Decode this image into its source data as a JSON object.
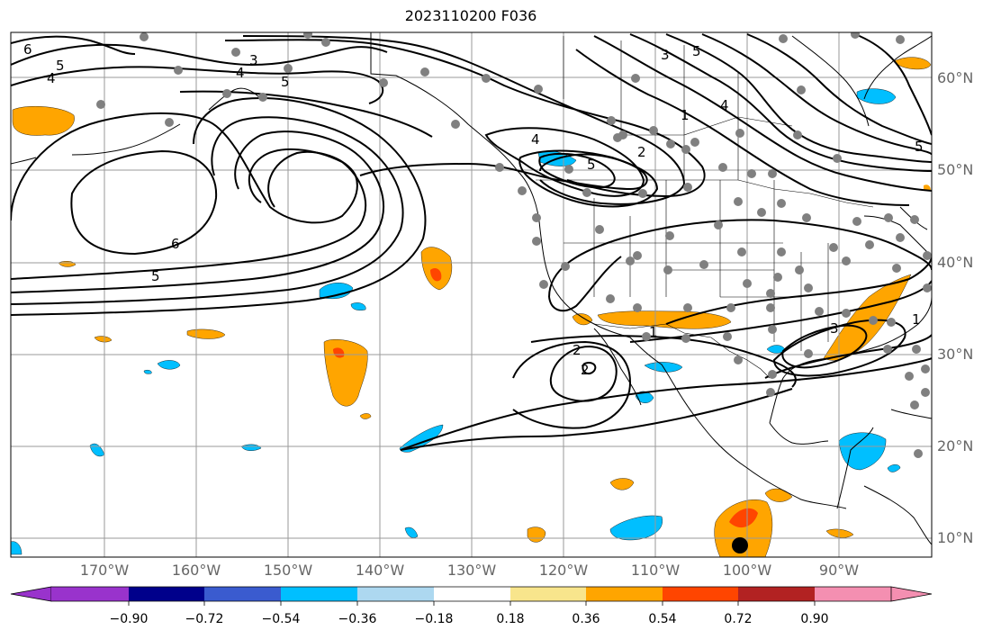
{
  "title": "2023110200 F036",
  "lat_labels": [
    "60°N",
    "50°N",
    "40°N",
    "30°N",
    "20°N",
    "10°N"
  ],
  "lon_labels": [
    "170°W",
    "160°W",
    "150°W",
    "140°W",
    "130°W",
    "120°W",
    "110°W",
    "100°W",
    "90°W"
  ],
  "contour_labels": [
    "6",
    "5",
    "4",
    "3",
    "5",
    "4",
    "5",
    "6",
    "5",
    "3",
    "5",
    "4",
    "1",
    "4",
    "5",
    "2",
    "1",
    "2",
    "3",
    "1",
    "2"
  ],
  "colorbar": {
    "tick_labels": [
      "−0.90",
      "−0.72",
      "−0.54",
      "−0.36",
      "−0.18",
      "0.18",
      "0.36",
      "0.54",
      "0.72",
      "0.90"
    ],
    "colors": [
      "#9933cc",
      "#00008b",
      "#3a5bcf",
      "#00bfff",
      "#add8f0",
      "#ffffff",
      "#f8e58c",
      "#ffa500",
      "#ff4500",
      "#b22222",
      "#f48fb1"
    ]
  },
  "colors": {
    "grid": "#9a9a9a",
    "contour": "#000000",
    "station": "#808080",
    "coast": "#000000"
  }
}
